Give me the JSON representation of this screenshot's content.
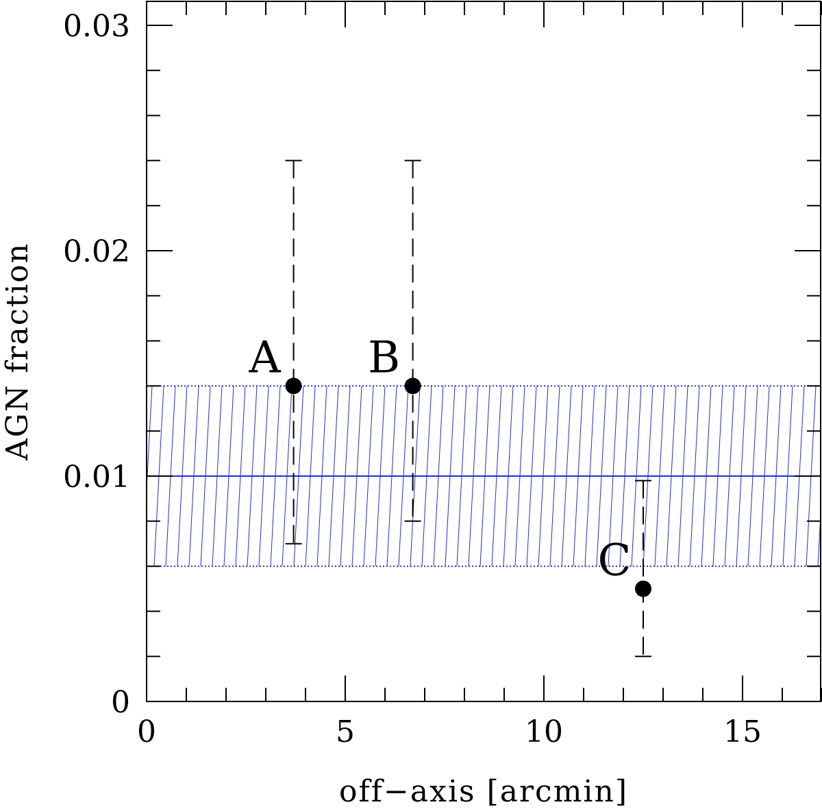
{
  "chart_data": {
    "type": "scatter",
    "title": "",
    "xlabel": "off−axis [arcmin]",
    "ylabel": "AGN fraction",
    "xlim": [
      0,
      17
    ],
    "ylim": [
      0,
      0.03
    ],
    "x_ticks": [
      {
        "value": 0,
        "label": "0"
      },
      {
        "value": 5,
        "label": "5"
      },
      {
        "value": 10,
        "label": "10"
      },
      {
        "value": 15,
        "label": "15"
      }
    ],
    "y_ticks": [
      {
        "value": 0,
        "label": "0"
      },
      {
        "value": 0.01,
        "label": "0.01"
      },
      {
        "value": 0.02,
        "label": "0.02"
      },
      {
        "value": 0.03,
        "label": "0.03"
      }
    ],
    "x_minor_step": 1,
    "y_minor_step": 0.002,
    "points": [
      {
        "label": "A",
        "x": 3.7,
        "y": 0.014,
        "y_low": 0.007,
        "y_high": 0.024
      },
      {
        "label": "B",
        "x": 6.7,
        "y": 0.014,
        "y_low": 0.008,
        "y_high": 0.024
      },
      {
        "label": "C",
        "x": 12.5,
        "y": 0.005,
        "y_low": 0.002,
        "y_high": 0.0098
      }
    ],
    "band": {
      "center": 0.01,
      "low": 0.006,
      "high": 0.014,
      "style": "hatched"
    },
    "colors": {
      "band": "#1f2fd0",
      "points": "#000000",
      "axes": "#000000"
    },
    "grid": false
  }
}
